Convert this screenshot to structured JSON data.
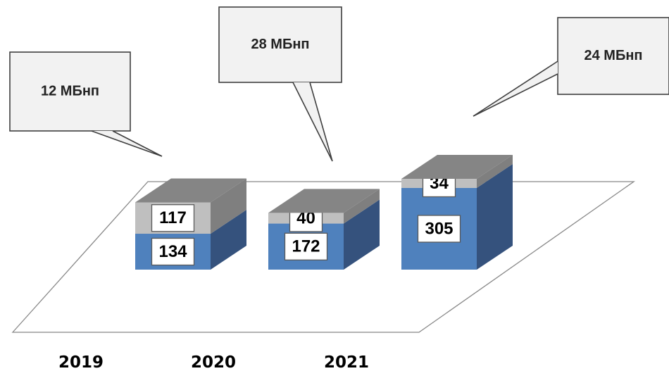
{
  "chart_data": {
    "type": "bar",
    "stacked": true,
    "style": "3d",
    "categories": [
      "2019",
      "2020",
      "2021"
    ],
    "series": [
      {
        "values": [
          134,
          172,
          305
        ],
        "color": "#4f81bd",
        "side_color": "#35527d"
      },
      {
        "values": [
          117,
          40,
          34
        ],
        "color": "#bfbfbf",
        "side_color": "#7f7f7f"
      }
    ],
    "callouts": [
      "12 МБнп",
      "28 МБнп",
      "24 МБнп"
    ],
    "top_color": "#858585",
    "callout_fill": "#f2f2f2",
    "grid": false,
    "legend": "none"
  }
}
